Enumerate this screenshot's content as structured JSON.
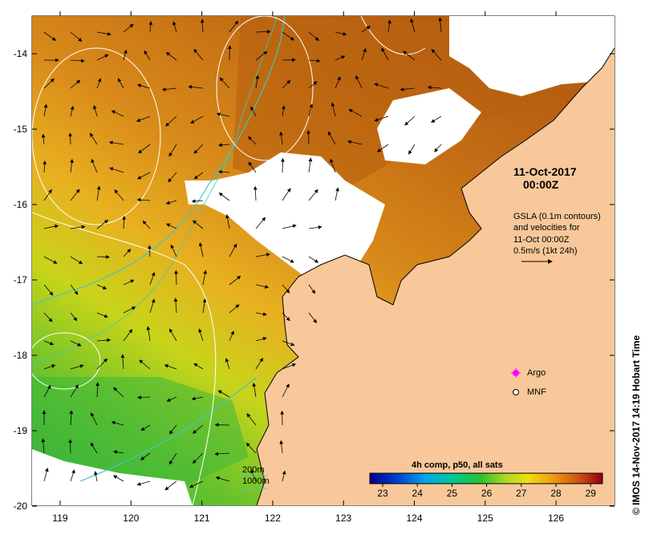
{
  "x_ticks": [
    "119",
    "120",
    "121",
    "122",
    "123",
    "124",
    "125",
    "126"
  ],
  "y_ticks": [
    "-14",
    "-15",
    "-16",
    "-17",
    "-18",
    "-19",
    "-20"
  ],
  "date_line1": "11-Oct-2017",
  "date_line2": "00:00Z",
  "gsla_lines": [
    "GSLA (0.1m contours)",
    "and velocities for",
    "11-Oct 00:00Z",
    "0.5m/s (1kt 24h)"
  ],
  "legend": {
    "argo": "Argo",
    "mnf": "MNF"
  },
  "colorbar": {
    "title": "4h comp, p50, all sats",
    "ticks": [
      "23",
      "24",
      "25",
      "26",
      "27",
      "28",
      "29"
    ]
  },
  "contour_legend": {
    "c200": "200m",
    "c1000": "1000m"
  },
  "credit": "© IMOS 14-Nov-2017 14:19 Hobart Time",
  "colors": {
    "land": "#F8C89A",
    "contour": "#3FC8C0",
    "sst_warm": "#C26A10",
    "sst_cool": "#5FC030"
  }
}
